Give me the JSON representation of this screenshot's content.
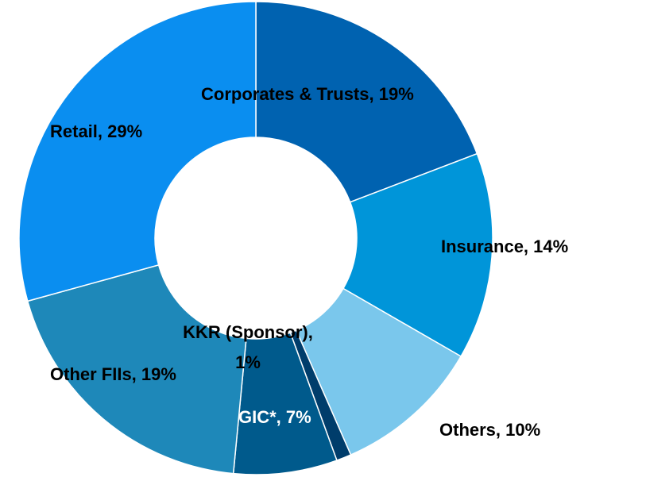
{
  "chart_data": {
    "type": "pie",
    "values": [
      19,
      14,
      10,
      1,
      7,
      19,
      29
    ],
    "value_labels": [
      "Corporates & Trusts, 19%",
      "Insurance, 14%",
      "Others, 10%",
      "KKR (Sponsor),\n1%",
      "GIC*, 7%",
      "Other FIIs, 19%",
      "Retail, 29%"
    ],
    "colors": [
      "#0062b0",
      "#0095d9",
      "#7ac7ec",
      "#003d6b",
      "#005a8c",
      "#1e88b9",
      "#0a8ef0"
    ],
    "label_colors": [
      "#000000",
      "#000000",
      "#000000",
      "#000000",
      "#ffffff",
      "#000000",
      "#000000"
    ]
  }
}
